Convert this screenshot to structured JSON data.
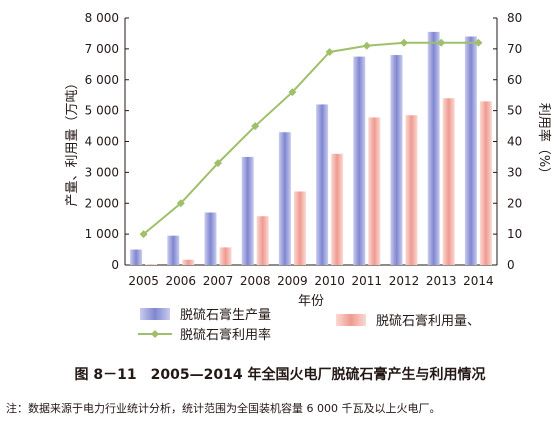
{
  "chart_data": {
    "type": "bar",
    "categories": [
      "2005",
      "2006",
      "2007",
      "2008",
      "2009",
      "2010",
      "2011",
      "2012",
      "2013",
      "2014"
    ],
    "series": [
      {
        "name": "脱硫石膏生产量",
        "kind": "bar",
        "axis": "left",
        "color": "#8c93d6",
        "values": [
          500,
          950,
          1700,
          3500,
          4300,
          5200,
          6750,
          6800,
          7550,
          7400
        ]
      },
      {
        "name": "脱硫石膏利用量、",
        "kind": "bar",
        "axis": "left",
        "color": "#f2a8a0",
        "values": [
          20,
          170,
          570,
          1580,
          2380,
          3600,
          4780,
          4850,
          5400,
          5300
        ]
      },
      {
        "name": "脱硫石膏利用率",
        "kind": "line",
        "axis": "right",
        "color": "#9fbf6a",
        "values": [
          10,
          20,
          33,
          45,
          56,
          69,
          71,
          72,
          72,
          72
        ]
      }
    ],
    "xlabel": "年份",
    "ylabel": "产量、利用量（万吨）",
    "y2label": "利用率（%）",
    "ylim": [
      0,
      8000
    ],
    "y2lim": [
      0,
      80
    ],
    "yticks": [
      "0",
      "1 000",
      "2 000",
      "3 000",
      "4 000",
      "5 000",
      "6 000",
      "7 000",
      "8 000"
    ],
    "y2ticks": [
      "0",
      "10",
      "20",
      "30",
      "40",
      "50",
      "60",
      "70",
      "80"
    ],
    "legend_position": "bottom",
    "grid": false
  },
  "caption": "图 8－11　2005—2014 年全国火电厂脱硫石膏产生与利用情况",
  "note": "注：数据来源于电力行业统计分析，统计范围为全国装机容量 6 000 千瓦及以上火电厂。"
}
